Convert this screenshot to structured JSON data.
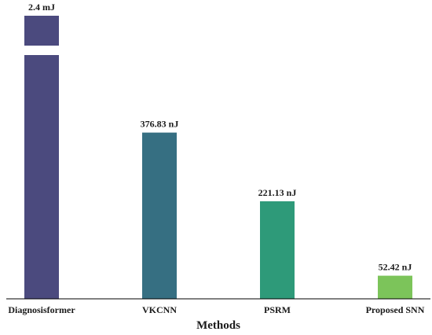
{
  "chart_data": {
    "type": "bar",
    "categories": [
      "Diagnosisformer",
      "VKCNN",
      "PSRM",
      "Proposed SNN"
    ],
    "values": [
      2400000,
      376.83,
      221.13,
      52.42
    ],
    "value_unit": "nJ",
    "data_labels": [
      "2.4 mJ",
      "376.83 nJ",
      "221.13 nJ",
      "52.42 nJ"
    ],
    "colors": [
      "#4b4a7e",
      "#366f82",
      "#2e9a79",
      "#7cc45a"
    ],
    "broken_axis": true,
    "xlabel": "Methods",
    "ylabel": "",
    "title": "",
    "grid": false
  }
}
